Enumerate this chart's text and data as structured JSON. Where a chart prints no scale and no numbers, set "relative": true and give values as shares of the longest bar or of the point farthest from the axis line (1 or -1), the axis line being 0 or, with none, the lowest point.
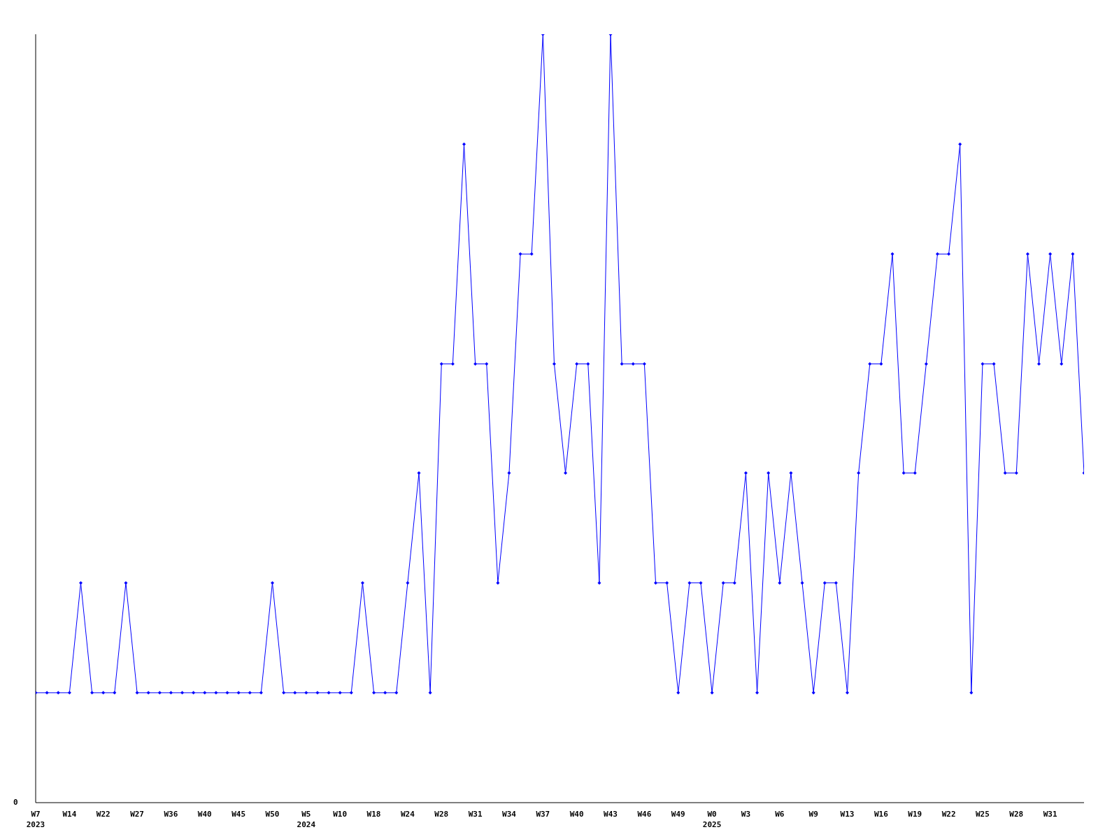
{
  "chart_data": {
    "type": "line",
    "relative": true,
    "annotations": [
      "0"
    ],
    "marker": "diamond",
    "line_style": "solid",
    "grid": false,
    "legend": false,
    "categories": [
      "W7\n2023",
      null,
      null,
      "W14",
      null,
      null,
      "W22",
      null,
      null,
      "W27",
      null,
      null,
      "W36",
      null,
      null,
      "W40",
      null,
      null,
      "W45",
      null,
      null,
      "W50",
      null,
      null,
      "W5\n2024",
      null,
      null,
      "W10",
      null,
      null,
      "W18",
      null,
      null,
      "W24",
      null,
      null,
      "W28",
      null,
      null,
      "W31",
      null,
      null,
      "W34",
      null,
      null,
      "W37",
      null,
      null,
      "W40",
      null,
      null,
      "W43",
      null,
      null,
      "W46",
      null,
      null,
      "W49",
      null,
      null,
      "W0\n2025",
      null,
      null,
      "W3",
      null,
      null,
      "W6",
      null,
      null,
      "W9",
      null,
      null,
      "W13",
      null,
      null,
      "W16",
      null,
      null,
      "W19",
      null,
      null,
      "W22",
      null,
      null,
      "W25",
      null,
      null,
      "W28",
      null,
      null,
      "W31",
      null,
      null,
      null
    ],
    "series": [
      {
        "color": "#0000ff",
        "values": [
          0.143,
          0.143,
          0.143,
          0.143,
          0.286,
          0.143,
          0.143,
          0.143,
          0.286,
          0.143,
          0.143,
          0.143,
          0.143,
          0.143,
          0.143,
          0.143,
          0.143,
          0.143,
          0.143,
          0.143,
          0.143,
          0.286,
          0.143,
          0.143,
          0.143,
          0.143,
          0.143,
          0.143,
          0.143,
          0.286,
          0.143,
          0.143,
          0.143,
          0.286,
          0.429,
          0.143,
          0.571,
          0.571,
          0.857,
          0.571,
          0.571,
          0.286,
          0.429,
          0.714,
          0.714,
          1,
          0.571,
          0.429,
          0.571,
          0.571,
          0.286,
          1,
          0.571,
          0.571,
          0.571,
          0.286,
          0.286,
          0.143,
          0.286,
          0.286,
          0.143,
          0.286,
          0.286,
          0.429,
          0.143,
          0.429,
          0.286,
          0.429,
          0.286,
          0.143,
          0.286,
          0.286,
          0.143,
          0.429,
          0.571,
          0.571,
          0.714,
          0.429,
          0.429,
          0.571,
          0.714,
          0.714,
          0.857,
          0.143,
          0.571,
          0.571,
          0.429,
          0.429,
          0.714,
          0.571,
          0.714,
          0.571,
          0.714,
          0.429
        ]
      }
    ]
  }
}
